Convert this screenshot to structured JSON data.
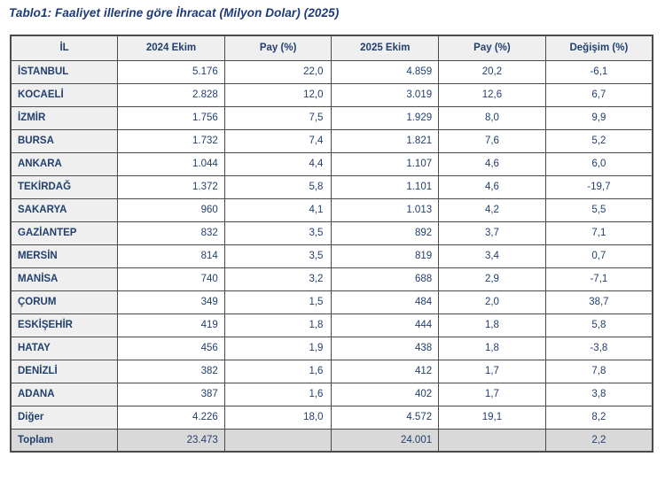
{
  "page": {
    "title": "Tablo1: Faaliyet illerine göre İhracat (Milyon Dolar) (2025)"
  },
  "table": {
    "columns": [
      "İL",
      "2024 Ekim",
      "Pay (%)",
      "2025 Ekim",
      "Pay (%)",
      "Değişim (%)"
    ],
    "rows": [
      [
        "İSTANBUL",
        "5.176",
        "22,0",
        "4.859",
        "20,2",
        "-6,1"
      ],
      [
        "KOCAELİ",
        "2.828",
        "12,0",
        "3.019",
        "12,6",
        "6,7"
      ],
      [
        "İZMİR",
        "1.756",
        "7,5",
        "1.929",
        "8,0",
        "9,9"
      ],
      [
        "BURSA",
        "1.732",
        "7,4",
        "1.821",
        "7,6",
        "5,2"
      ],
      [
        "ANKARA",
        "1.044",
        "4,4",
        "1.107",
        "4,6",
        "6,0"
      ],
      [
        "TEKİRDAĞ",
        "1.372",
        "5,8",
        "1.101",
        "4,6",
        "-19,7"
      ],
      [
        "SAKARYA",
        "960",
        "4,1",
        "1.013",
        "4,2",
        "5,5"
      ],
      [
        "GAZİANTEP",
        "832",
        "3,5",
        "892",
        "3,7",
        "7,1"
      ],
      [
        "MERSİN",
        "814",
        "3,5",
        "819",
        "3,4",
        "0,7"
      ],
      [
        "MANİSA",
        "740",
        "3,2",
        "688",
        "2,9",
        "-7,1"
      ],
      [
        "ÇORUM",
        "349",
        "1,5",
        "484",
        "2,0",
        "38,7"
      ],
      [
        "ESKİŞEHİR",
        "419",
        "1,8",
        "444",
        "1,8",
        "5,8"
      ],
      [
        "HATAY",
        "456",
        "1,9",
        "438",
        "1,8",
        "-3,8"
      ],
      [
        "DENİZLİ",
        "382",
        "1,6",
        "412",
        "1,7",
        "7,8"
      ],
      [
        "ADANA",
        "387",
        "1,6",
        "402",
        "1,7",
        "3,8"
      ],
      [
        "Diğer",
        "4.226",
        "18,0",
        "4.572",
        "19,1",
        "8,2"
      ]
    ],
    "total_row": [
      "Toplam",
      "23.473",
      "",
      "24.001",
      "",
      "2,2"
    ]
  },
  "colors": {
    "title_text": "#1e3a78",
    "cell_text": "#23406f",
    "header_bg": "#efefef",
    "label_column_bg": "#efefef",
    "total_row_bg": "#d9d9d9",
    "border": "#4a4a4a"
  }
}
